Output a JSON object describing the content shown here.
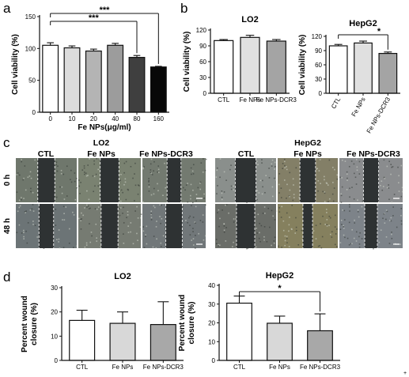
{
  "panels": {
    "a": "a",
    "b": "b",
    "c": "c",
    "d": "d"
  },
  "colors": {
    "bar_fills": [
      "#ffffff",
      "#dcdcdc",
      "#b4b4b4",
      "#9c9c9c",
      "#3f3f3f",
      "#080808"
    ],
    "b_fills": [
      "#ffffff",
      "#e0e0e0",
      "#a4a4a4"
    ],
    "d_fills": [
      "#ffffff",
      "#d8d8d8",
      "#a8a8a8"
    ],
    "micro_bg": "#4c5450",
    "gap": "#2e3233"
  },
  "chart_data": [
    {
      "id": "a",
      "type": "bar",
      "categories": [
        "0",
        "10",
        "20",
        "40",
        "80",
        "160"
      ],
      "values": [
        105,
        101,
        96,
        105,
        86,
        71
      ],
      "errors": [
        4,
        3,
        3,
        3,
        3,
        1
      ],
      "xlabel": "Fe NPs(μg/ml)",
      "ylabel": "Cell viability (%)",
      "ylim": [
        0,
        150
      ],
      "yticks": [
        "0",
        "50",
        "100",
        "150"
      ],
      "significance": [
        {
          "from": 0,
          "to": 4,
          "label": "***"
        },
        {
          "from": 0,
          "to": 5,
          "label": "***"
        }
      ]
    },
    {
      "id": "b-lo2",
      "type": "bar",
      "title": "LO2",
      "categories": [
        "CTL",
        "Fe NPs",
        "Fe NPs-DCR3"
      ],
      "values": [
        100,
        106,
        99
      ],
      "errors": [
        2,
        4,
        3
      ],
      "ylabel": "Cell viability (%)",
      "ylim": [
        0,
        120
      ],
      "yticks": [
        "0",
        "30",
        "60",
        "90",
        "120"
      ]
    },
    {
      "id": "b-hepg2",
      "type": "bar",
      "title": "HepG2",
      "categories": [
        "CTL",
        "Fe NPs",
        "Fe NPs-DCR3"
      ],
      "values": [
        100,
        106,
        84
      ],
      "errors": [
        3,
        4,
        3
      ],
      "ylabel": "Cell viability (%)",
      "ylim": [
        0,
        120
      ],
      "yticks": [
        "0",
        "30",
        "60",
        "90",
        "120"
      ],
      "significance": [
        {
          "from": 0,
          "to": 2,
          "label": "*"
        }
      ]
    },
    {
      "id": "d-lo2",
      "type": "bar",
      "title": "LO2",
      "categories": [
        "CTL",
        "Fe NPs",
        "Fe NPs-DCR3"
      ],
      "values": [
        16.5,
        15.3,
        14.8
      ],
      "errors": [
        4.2,
        4.7,
        9.4
      ],
      "ylabel": "Percent wound closure (%)",
      "ylim": [
        0,
        30
      ],
      "yticks": [
        "0",
        "10",
        "20",
        "30"
      ]
    },
    {
      "id": "d-hepg2",
      "type": "bar",
      "title": "HepG2",
      "categories": [
        "CTL",
        "Fe NPs",
        "Fe NPs-DCR3"
      ],
      "values": [
        30.5,
        19.8,
        15.8
      ],
      "errors": [
        3.8,
        3.8,
        9.0
      ],
      "ylabel": "Percent wound closure (%)",
      "ylim": [
        0,
        40
      ],
      "yticks": [
        "0",
        "10",
        "20",
        "30",
        "40"
      ],
      "significance": [
        {
          "from": 0,
          "to": 2,
          "label": "*"
        }
      ]
    }
  ],
  "micrographs": {
    "lo2_title": "LO2",
    "hepg2_title": "HepG2",
    "col_labels": [
      "CTL",
      "Fe NPs",
      "Fe NPs-DCR3",
      "CTL",
      "Fe NPs",
      "Fe NPs-DCR3"
    ],
    "row_labels": [
      "0 h",
      "48 h"
    ],
    "cell_tints": [
      [
        "#6f776c",
        "#7a8271",
        "#737a70",
        "#8a8f8c",
        "#837f67",
        "#8a8c8e"
      ],
      [
        "#6c7476",
        "#767b72",
        "#717779",
        "#6a6d68",
        "#85805e",
        "#7d8389"
      ]
    ],
    "gap_frac": [
      [
        0.28,
        0.3,
        0.22,
        0.34,
        0.26,
        0.24
      ],
      [
        0.24,
        0.27,
        0.26,
        0.3,
        0.16,
        0.2
      ]
    ]
  }
}
